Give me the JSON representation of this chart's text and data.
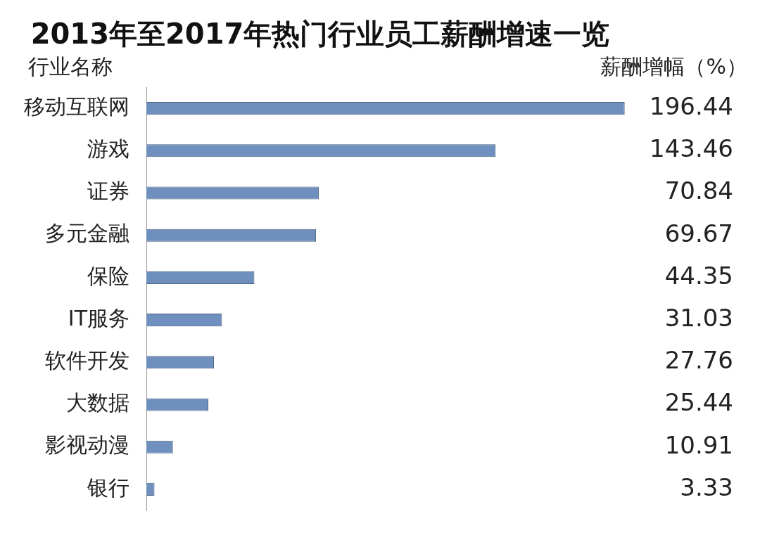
{
  "chart_data": {
    "type": "bar",
    "orientation": "horizontal",
    "title": "2013年至2017年热门行业员工薪酬增速一览",
    "ylabel": "行业名称",
    "xlabel": "薪酬增幅（%）",
    "categories": [
      "移动互联网",
      "游戏",
      "证券",
      "多元金融",
      "保险",
      "IT服务",
      "软件开发",
      "大数据",
      "影视动漫",
      "银行"
    ],
    "values": [
      196.44,
      143.46,
      70.84,
      69.67,
      44.35,
      31.03,
      27.76,
      25.44,
      10.91,
      3.33
    ],
    "color": "#6f8fbf",
    "data_labels": true,
    "tick_labels": "y",
    "grid": false,
    "legend": false
  }
}
